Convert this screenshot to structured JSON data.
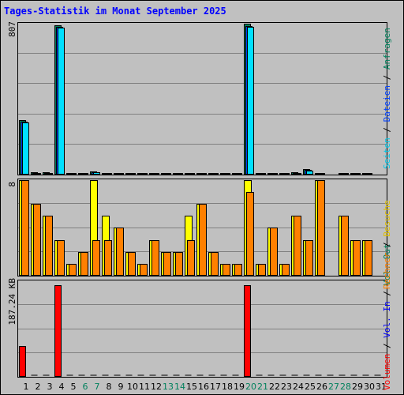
{
  "title": "Tages-Statistik im Monat September 2025",
  "legend": {
    "volumen": "Volumen",
    "vol_in": "Vol. In",
    "vol_out": "Vol. Out",
    "besuche": "Besuche",
    "rechner": "Rechner",
    "seiten": "Seiten",
    "dateien": "Dateien",
    "anfragen": "Anfragen",
    "separator": " / "
  },
  "colors": {
    "background": "#c0c0c0",
    "title": "#0000ff",
    "anfragen": "#00805c",
    "dateien": "#0040ff",
    "seiten": "#00e0ff",
    "besuche": "#ffff00",
    "rechner": "#ff8000",
    "volumen": "#ff0000",
    "vol_in": "#0000ff",
    "vol_out": "#00805c",
    "weekend_day": "#00805c"
  },
  "chart_data": [
    {
      "type": "bar",
      "panel": "top",
      "ymax_label": "807",
      "ylim": [
        0,
        807
      ],
      "categories": [
        "1",
        "2",
        "3",
        "4",
        "5",
        "6",
        "7",
        "8",
        "9",
        "10",
        "11",
        "12",
        "13",
        "14",
        "15",
        "16",
        "17",
        "18",
        "19",
        "20",
        "21",
        "22",
        "23",
        "24",
        "25",
        "26",
        "27",
        "28",
        "29",
        "30",
        "31"
      ],
      "series": [
        {
          "name": "Anfragen",
          "values": [
            292,
            12,
            12,
            798,
            4,
            4,
            16,
            10,
            4,
            4,
            4,
            4,
            4,
            4,
            4,
            10,
            10,
            4,
            4,
            805,
            4,
            4,
            4,
            12,
            28,
            10,
            0,
            10,
            4,
            4,
            0
          ]
        },
        {
          "name": "Dateien",
          "values": [
            283,
            10,
            10,
            790,
            3,
            3,
            14,
            8,
            3,
            3,
            3,
            3,
            3,
            3,
            3,
            8,
            8,
            3,
            3,
            795,
            3,
            3,
            3,
            10,
            25,
            8,
            0,
            8,
            3,
            3,
            0
          ]
        },
        {
          "name": "Seiten",
          "values": [
            280,
            9,
            9,
            785,
            2,
            2,
            12,
            7,
            2,
            2,
            2,
            2,
            2,
            2,
            2,
            7,
            7,
            2,
            2,
            790,
            2,
            2,
            2,
            8,
            23,
            7,
            0,
            7,
            2,
            2,
            0
          ]
        }
      ]
    },
    {
      "type": "bar",
      "panel": "middle",
      "ymax_label": "8",
      "ylim": [
        0,
        8
      ],
      "categories": [
        "1",
        "2",
        "3",
        "4",
        "5",
        "6",
        "7",
        "8",
        "9",
        "10",
        "11",
        "12",
        "13",
        "14",
        "15",
        "16",
        "17",
        "18",
        "19",
        "20",
        "21",
        "22",
        "23",
        "24",
        "25",
        "26",
        "27",
        "28",
        "29",
        "30",
        "31"
      ],
      "series": [
        {
          "name": "Besuche",
          "values": [
            8,
            6,
            5,
            3,
            1,
            2,
            8,
            5,
            4,
            2,
            1,
            3,
            2,
            2,
            5,
            6,
            2,
            1,
            1,
            8,
            1,
            4,
            1,
            5,
            3,
            8,
            0,
            5,
            3,
            3,
            0
          ]
        },
        {
          "name": "Rechner",
          "values": [
            8,
            6,
            5,
            3,
            1,
            2,
            3,
            3,
            4,
            2,
            1,
            3,
            2,
            2,
            3,
            6,
            2,
            1,
            1,
            7,
            1,
            4,
            1,
            5,
            3,
            8,
            0,
            5,
            3,
            3,
            0
          ]
        }
      ]
    },
    {
      "type": "bar",
      "panel": "bottom",
      "ymax_label": "187.24 KB",
      "ylim": [
        0,
        187.24
      ],
      "categories": [
        "1",
        "2",
        "3",
        "4",
        "5",
        "6",
        "7",
        "8",
        "9",
        "10",
        "11",
        "12",
        "13",
        "14",
        "15",
        "16",
        "17",
        "18",
        "19",
        "20",
        "21",
        "22",
        "23",
        "24",
        "25",
        "26",
        "27",
        "28",
        "29",
        "30",
        "31"
      ],
      "series": [
        {
          "name": "Volumen",
          "values": [
            61,
            0,
            0,
            179,
            0,
            0,
            0,
            0,
            0,
            0,
            0,
            0,
            0,
            0,
            0,
            0,
            0,
            0,
            0,
            179,
            0,
            0,
            0,
            0,
            0,
            0,
            0,
            0,
            0,
            0,
            0
          ]
        }
      ]
    }
  ],
  "day_labels": [
    "1",
    "2",
    "3",
    "4",
    "5",
    "6",
    "7",
    "8",
    "9",
    "10",
    "11",
    "12",
    "13",
    "14",
    "15",
    "16",
    "17",
    "18",
    "19",
    "20",
    "21",
    "22",
    "23",
    "24",
    "25",
    "26",
    "27",
    "28",
    "29",
    "30",
    "31"
  ],
  "weekend_days": [
    "6",
    "7",
    "13",
    "14",
    "20",
    "21",
    "27",
    "28"
  ]
}
